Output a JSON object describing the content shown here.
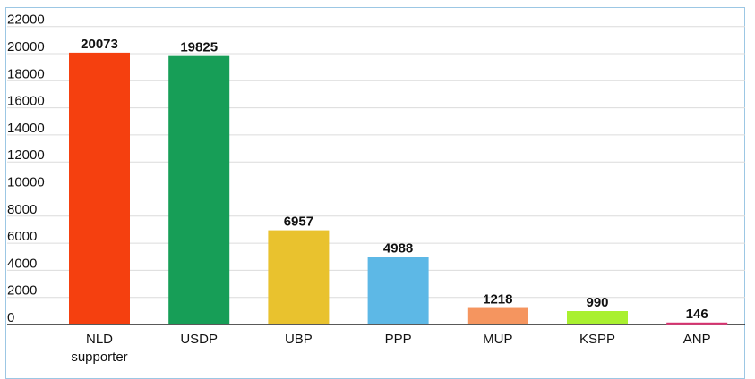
{
  "chart_data": {
    "type": "bar",
    "categories": [
      [
        "NLD",
        "supporter"
      ],
      [
        "USDP"
      ],
      [
        "UBP"
      ],
      [
        "PPP"
      ],
      [
        "MUP"
      ],
      [
        "KSPP"
      ],
      [
        "ANP"
      ]
    ],
    "values": [
      20073,
      19825,
      6957,
      4988,
      1218,
      990,
      146
    ],
    "value_labels": [
      "20073",
      "19825",
      "6957",
      "4988",
      "1218",
      "990",
      "146"
    ],
    "colors": [
      "#f5400f",
      "#179e57",
      "#e9c22e",
      "#5db8e6",
      "#f5955f",
      "#a9f02f",
      "#d8316f"
    ],
    "yticks": [
      0,
      2000,
      4000,
      6000,
      8000,
      10000,
      12000,
      14000,
      16000,
      18000,
      20000,
      22000
    ],
    "ylim": [
      0,
      22000
    ],
    "title": "",
    "xlabel": "",
    "ylabel": "",
    "grid": true,
    "legend": "none"
  }
}
